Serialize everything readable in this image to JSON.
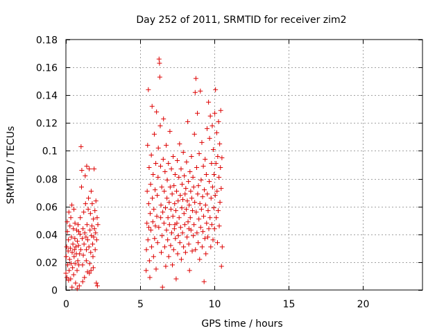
{
  "chart_data": {
    "type": "scatter",
    "title": "Day 252 of 2011, SRMTID for receiver zim2",
    "xlabel": "GPS time / hours",
    "ylabel": "SRMTID / TECUs",
    "xlim": [
      0,
      24
    ],
    "ylim": [
      0,
      0.18
    ],
    "x_ticks": [
      0,
      5,
      10,
      15,
      20
    ],
    "x_tick_labels": [
      "0",
      "5",
      "10",
      "15",
      "20"
    ],
    "y_ticks": [
      0,
      0.02,
      0.04,
      0.06,
      0.08,
      0.1,
      0.12,
      0.14,
      0.16,
      0.18
    ],
    "y_tick_labels": [
      "0",
      "0.02",
      "0.04",
      "0.06",
      "0.08",
      "0.1",
      "0.12",
      "0.14",
      "0.16",
      "0.18"
    ],
    "grid": true,
    "marker": "+",
    "color": "#dd0000",
    "series": [
      {
        "name": "zim2",
        "points": [
          [
            0.0,
            0.012
          ],
          [
            0.02,
            0.024
          ],
          [
            0.05,
            0.031
          ],
          [
            0.07,
            0.009
          ],
          [
            0.1,
            0.042
          ],
          [
            0.12,
            0.018
          ],
          [
            0.15,
            0.028
          ],
          [
            0.17,
            0.036
          ],
          [
            0.2,
            0.056
          ],
          [
            0.22,
            0.014
          ],
          [
            0.25,
            0.022
          ],
          [
            0.27,
            0.046
          ],
          [
            0.3,
            0.03
          ],
          [
            0.32,
            0.008
          ],
          [
            0.35,
            0.019
          ],
          [
            0.37,
            0.038
          ],
          [
            0.4,
            0.061
          ],
          [
            0.42,
            0.027
          ],
          [
            0.45,
            0.016
          ],
          [
            0.47,
            0.033
          ],
          [
            0.5,
            0.044
          ],
          [
            0.52,
            0.011
          ],
          [
            0.55,
            0.024
          ],
          [
            0.57,
            0.029
          ],
          [
            0.6,
            0.037
          ],
          [
            0.62,
            0.019
          ],
          [
            0.65,
            0.005
          ],
          [
            0.67,
            0.031
          ],
          [
            0.7,
            0.026
          ],
          [
            0.72,
            0.043
          ],
          [
            0.75,
            0.014
          ],
          [
            0.77,
            0.035
          ],
          [
            0.8,
            0.021
          ],
          [
            0.82,
            0.047
          ],
          [
            0.85,
            0.032
          ],
          [
            0.87,
            0.018
          ],
          [
            0.9,
            0.003
          ],
          [
            0.92,
            0.026
          ],
          [
            0.95,
            0.04
          ],
          [
            0.97,
            0.052
          ],
          [
            1.0,
            0.029
          ],
          [
            1.02,
            0.103
          ],
          [
            1.05,
            0.074
          ],
          [
            1.07,
            0.086
          ],
          [
            1.1,
            0.037
          ],
          [
            1.12,
            0.018
          ],
          [
            1.15,
            0.044
          ],
          [
            1.17,
            0.025
          ],
          [
            1.2,
            0.056
          ],
          [
            1.22,
            0.033
          ],
          [
            1.25,
            0.009
          ],
          [
            1.27,
            0.041
          ],
          [
            1.3,
            0.082
          ],
          [
            1.32,
            0.062
          ],
          [
            1.35,
            0.038
          ],
          [
            1.37,
            0.021
          ],
          [
            1.4,
            0.089
          ],
          [
            1.42,
            0.047
          ],
          [
            1.45,
            0.013
          ],
          [
            1.47,
            0.036
          ],
          [
            1.5,
            0.058
          ],
          [
            1.52,
            0.066
          ],
          [
            1.55,
            0.031
          ],
          [
            1.57,
            0.087
          ],
          [
            1.6,
            0.019
          ],
          [
            1.62,
            0.043
          ],
          [
            1.65,
            0.055
          ],
          [
            1.67,
            0.027
          ],
          [
            1.7,
            0.071
          ],
          [
            1.72,
            0.039
          ],
          [
            1.75,
            0.046
          ],
          [
            1.77,
            0.062
          ],
          [
            1.8,
            0.033
          ],
          [
            1.82,
            0.024
          ],
          [
            1.85,
            0.051
          ],
          [
            1.87,
            0.038
          ],
          [
            1.9,
            0.087
          ],
          [
            1.92,
            0.044
          ],
          [
            1.95,
            0.057
          ],
          [
            1.97,
            0.029
          ],
          [
            2.0,
            0.041
          ],
          [
            2.02,
            0.064
          ],
          [
            2.05,
            0.005
          ],
          [
            2.07,
            0.036
          ],
          [
            2.1,
            0.052
          ],
          [
            2.12,
            0.003
          ],
          [
            2.15,
            0.047
          ],
          [
            0.09,
            0.049
          ],
          [
            0.33,
            0.052
          ],
          [
            0.61,
            0.048
          ],
          [
            0.18,
            0.007
          ],
          [
            0.41,
            0.002
          ],
          [
            0.76,
            0.001
          ],
          [
            1.13,
            0.006
          ],
          [
            1.58,
            0.012
          ],
          [
            1.84,
            0.016
          ],
          [
            0.54,
            0.058
          ],
          [
            1.38,
            0.029
          ],
          [
            0.86,
            0.042
          ],
          [
            1.69,
            0.014
          ],
          [
            5.4,
            0.014
          ],
          [
            5.42,
            0.029
          ],
          [
            5.45,
            0.048
          ],
          [
            5.47,
            0.071
          ],
          [
            5.5,
            0.104
          ],
          [
            5.52,
            0.036
          ],
          [
            5.55,
            0.144
          ],
          [
            5.57,
            0.062
          ],
          [
            5.6,
            0.088
          ],
          [
            5.62,
            0.021
          ],
          [
            5.65,
            0.009
          ],
          [
            5.67,
            0.055
          ],
          [
            5.7,
            0.076
          ],
          [
            5.72,
            0.043
          ],
          [
            5.75,
            0.097
          ],
          [
            5.77,
            0.031
          ],
          [
            5.8,
            0.132
          ],
          [
            5.82,
            0.066
          ],
          [
            5.85,
            0.049
          ],
          [
            5.87,
            0.083
          ],
          [
            5.9,
            0.024
          ],
          [
            5.92,
            0.058
          ],
          [
            5.95,
            0.112
          ],
          [
            5.97,
            0.037
          ],
          [
            6.0,
            0.072
          ],
          [
            6.02,
            0.046
          ],
          [
            6.05,
            0.091
          ],
          [
            6.07,
            0.015
          ],
          [
            6.1,
            0.128
          ],
          [
            6.12,
            0.053
          ],
          [
            6.15,
            0.068
          ],
          [
            6.17,
            0.034
          ],
          [
            6.2,
            0.081
          ],
          [
            6.22,
            0.102
          ],
          [
            6.25,
            0.045
          ],
          [
            6.27,
            0.166
          ],
          [
            6.3,
            0.163
          ],
          [
            6.32,
            0.153
          ],
          [
            6.35,
            0.118
          ],
          [
            6.37,
            0.089
          ],
          [
            6.4,
            0.061
          ],
          [
            6.42,
            0.027
          ],
          [
            6.45,
            0.074
          ],
          [
            6.47,
            0.039
          ],
          [
            6.5,
            0.002
          ],
          [
            6.52,
            0.056
          ],
          [
            6.55,
            0.094
          ],
          [
            6.57,
            0.123
          ],
          [
            6.6,
            0.048
          ],
          [
            6.62,
            0.071
          ],
          [
            6.65,
            0.031
          ],
          [
            6.67,
            0.085
          ],
          [
            6.7,
            0.059
          ],
          [
            6.72,
            0.017
          ],
          [
            6.75,
            0.104
          ],
          [
            6.77,
            0.043
          ],
          [
            6.8,
            0.066
          ],
          [
            6.82,
            0.079
          ],
          [
            6.85,
            0.036
          ],
          [
            6.87,
            0.052
          ],
          [
            6.9,
            0.091
          ],
          [
            6.92,
            0.024
          ],
          [
            6.95,
            0.063
          ],
          [
            6.97,
            0.047
          ],
          [
            7.0,
            0.114
          ],
          [
            7.02,
            0.074
          ],
          [
            7.05,
            0.032
          ],
          [
            7.07,
            0.058
          ],
          [
            7.1,
            0.087
          ],
          [
            7.12,
            0.041
          ],
          [
            7.15,
            0.069
          ],
          [
            7.17,
            0.018
          ],
          [
            7.2,
            0.053
          ],
          [
            7.22,
            0.096
          ],
          [
            7.25,
            0.029
          ],
          [
            7.27,
            0.075
          ],
          [
            7.3,
            0.044
          ],
          [
            7.32,
            0.062
          ],
          [
            7.35,
            0.083
          ],
          [
            7.37,
            0.037
          ],
          [
            7.4,
            0.057
          ],
          [
            7.42,
            0.008
          ],
          [
            7.45,
            0.071
          ],
          [
            7.47,
            0.048
          ],
          [
            7.5,
            0.093
          ],
          [
            7.52,
            0.026
          ],
          [
            7.55,
            0.064
          ],
          [
            7.57,
            0.039
          ],
          [
            7.6,
            0.081
          ],
          [
            7.62,
            0.052
          ],
          [
            7.65,
            0.105
          ],
          [
            7.67,
            0.034
          ],
          [
            7.7,
            0.068
          ],
          [
            7.72,
            0.045
          ],
          [
            7.75,
            0.087
          ],
          [
            7.77,
            0.022
          ],
          [
            7.8,
            0.059
          ],
          [
            7.82,
            0.076
          ],
          [
            7.85,
            0.041
          ],
          [
            7.87,
            0.065
          ],
          [
            7.9,
            0.099
          ],
          [
            7.92,
            0.031
          ],
          [
            7.95,
            0.055
          ],
          [
            7.97,
            0.082
          ],
          [
            8.0,
            0.047
          ],
          [
            8.02,
            0.069
          ],
          [
            8.05,
            0.027
          ],
          [
            8.07,
            0.073
          ],
          [
            8.1,
            0.058
          ],
          [
            8.12,
            0.092
          ],
          [
            8.15,
            0.038
          ],
          [
            8.17,
            0.064
          ],
          [
            8.2,
            0.121
          ],
          [
            8.22,
            0.049
          ],
          [
            8.25,
            0.078
          ],
          [
            8.27,
            0.033
          ],
          [
            8.3,
            0.061
          ],
          [
            8.32,
            0.014
          ],
          [
            8.35,
            0.085
          ],
          [
            8.37,
            0.052
          ],
          [
            8.4,
            0.071
          ],
          [
            8.42,
            0.043
          ],
          [
            8.45,
            0.096
          ],
          [
            8.47,
            0.066
          ],
          [
            8.5,
            0.028
          ],
          [
            8.52,
            0.057
          ],
          [
            8.55,
            0.081
          ],
          [
            8.57,
            0.039
          ],
          [
            8.6,
            0.074
          ],
          [
            8.62,
            0.047
          ],
          [
            8.65,
            0.112
          ],
          [
            8.67,
            0.063
          ],
          [
            8.7,
            0.142
          ],
          [
            8.72,
            0.029
          ],
          [
            8.75,
            0.152
          ],
          [
            8.77,
            0.056
          ],
          [
            8.8,
            0.088
          ],
          [
            8.82,
            0.041
          ],
          [
            8.85,
            0.127
          ],
          [
            8.87,
            0.069
          ],
          [
            8.9,
            0.034
          ],
          [
            8.92,
            0.075
          ],
          [
            8.95,
            0.051
          ],
          [
            8.97,
            0.098
          ],
          [
            9.0,
            0.022
          ],
          [
            9.02,
            0.062
          ],
          [
            9.05,
            0.143
          ],
          [
            9.07,
            0.045
          ],
          [
            9.1,
            0.079
          ],
          [
            9.12,
            0.058
          ],
          [
            9.15,
            0.106
          ],
          [
            9.17,
            0.031
          ],
          [
            9.2,
            0.067
          ],
          [
            9.22,
            0.042
          ],
          [
            9.25,
            0.089
          ],
          [
            9.27,
            0.053
          ],
          [
            9.3,
            0.006
          ],
          [
            9.32,
            0.072
          ],
          [
            9.35,
            0.037
          ],
          [
            9.37,
            0.094
          ],
          [
            9.4,
            0.061
          ],
          [
            9.42,
            0.026
          ],
          [
            9.45,
            0.083
          ],
          [
            9.47,
            0.048
          ],
          [
            9.5,
            0.116
          ],
          [
            9.52,
            0.069
          ],
          [
            9.55,
            0.038
          ],
          [
            9.57,
            0.057
          ],
          [
            9.6,
            0.135
          ],
          [
            9.62,
            0.044
          ],
          [
            9.65,
            0.078
          ],
          [
            9.67,
            0.109
          ],
          [
            9.7,
            0.052
          ],
          [
            9.72,
            0.125
          ],
          [
            9.75,
            0.031
          ],
          [
            9.77,
            0.066
          ],
          [
            9.8,
            0.091
          ],
          [
            9.82,
            0.047
          ],
          [
            9.85,
            0.118
          ],
          [
            9.87,
            0.074
          ],
          [
            9.9,
            0.036
          ],
          [
            9.92,
            0.101
          ],
          [
            9.95,
            0.059
          ],
          [
            9.97,
            0.083
          ],
          [
            10.0,
            0.044
          ],
          [
            10.02,
            0.127
          ],
          [
            10.05,
            0.068
          ],
          [
            10.07,
            0.144
          ],
          [
            10.1,
            0.091
          ],
          [
            10.12,
            0.052
          ],
          [
            10.15,
            0.113
          ],
          [
            10.17,
            0.071
          ],
          [
            10.2,
            0.034
          ],
          [
            10.22,
            0.096
          ],
          [
            10.25,
            0.057
          ],
          [
            10.27,
            0.121
          ],
          [
            10.3,
            0.081
          ],
          [
            10.32,
            0.046
          ],
          [
            10.35,
            0.105
          ],
          [
            10.37,
            0.063
          ],
          [
            10.4,
            0.088
          ],
          [
            10.42,
            0.129
          ],
          [
            10.45,
            0.073
          ],
          [
            10.47,
            0.017
          ],
          [
            10.5,
            0.095
          ],
          [
            10.52,
            0.031
          ],
          [
            5.58,
            0.045
          ],
          [
            6.38,
            0.052
          ],
          [
            7.33,
            0.047
          ],
          [
            8.28,
            0.044
          ]
        ]
      }
    ]
  }
}
